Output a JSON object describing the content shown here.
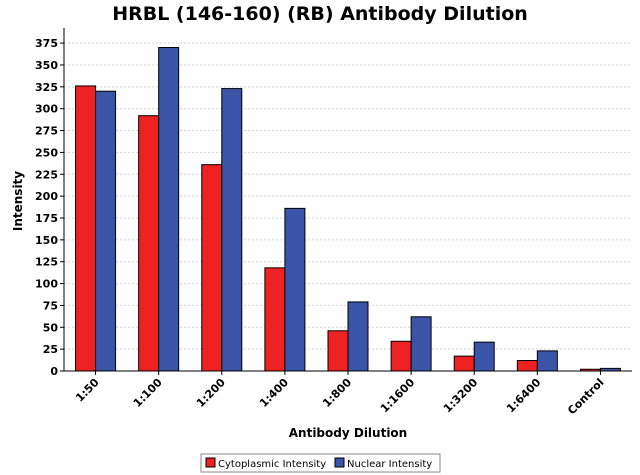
{
  "chart_data": {
    "type": "bar",
    "title": "HRBL (146-160) (RB) Antibody Dilution",
    "xlabel": "Antibody Dilution",
    "ylabel": "Intensity",
    "categories": [
      "1:50",
      "1:100",
      "1:200",
      "1:400",
      "1:800",
      "1:1600",
      "1:3200",
      "1:6400",
      "Control"
    ],
    "series": [
      {
        "name": "Cytoplasmic Intensity",
        "color": "#ee2222",
        "values": [
          326,
          292,
          236,
          118,
          46,
          34,
          17,
          12,
          2
        ]
      },
      {
        "name": "Nuclear Intensity",
        "color": "#3a55a8",
        "values": [
          320,
          370,
          323,
          186,
          79,
          62,
          33,
          23,
          3
        ]
      }
    ],
    "ylim": [
      0,
      390
    ],
    "yticks": [
      0,
      25,
      50,
      75,
      100,
      125,
      150,
      175,
      200,
      225,
      250,
      275,
      300,
      325,
      350,
      375
    ],
    "grid": true,
    "legend_position": "bottom"
  }
}
